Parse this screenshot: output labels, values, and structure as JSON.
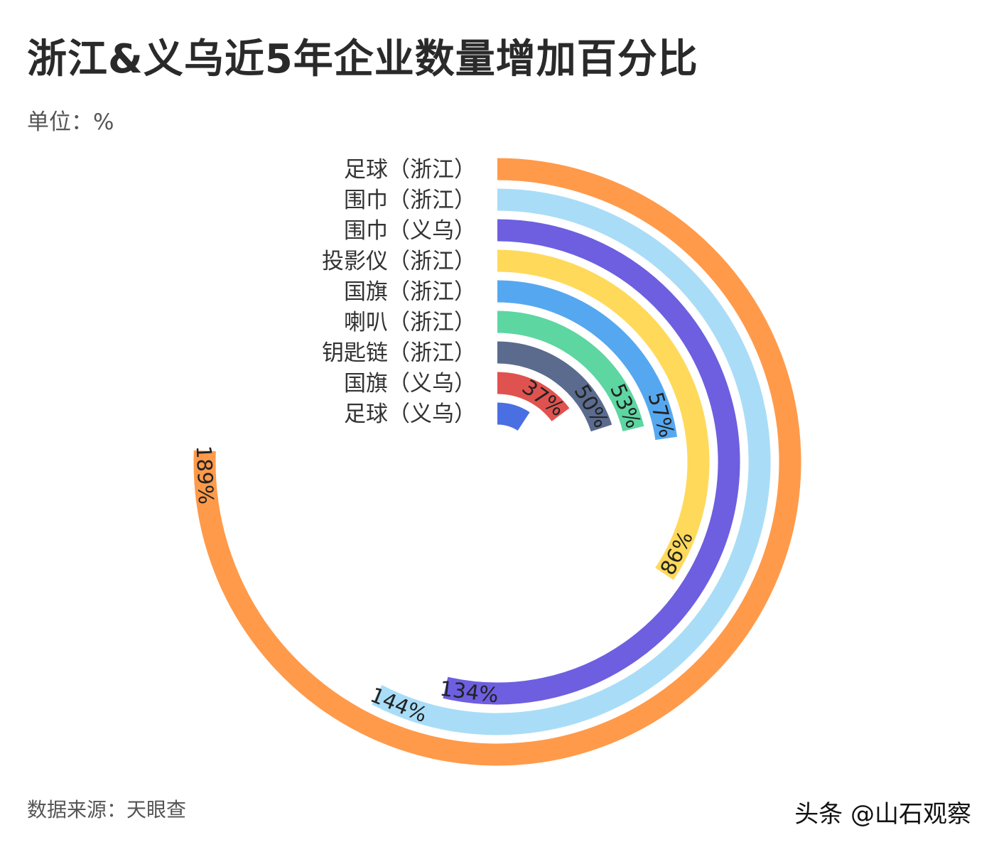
{
  "title": "浙江&义乌近5年企业数量增加百分比",
  "unit_label": "单位：%",
  "source": "数据来源：天眼查",
  "watermark": "头条 @山石观察",
  "chart_data": {
    "type": "radial-bar",
    "max_value": 250,
    "categories": [
      "足球（浙江）",
      "围巾（浙江）",
      "围巾（义乌）",
      "投影仪（浙江）",
      "国旗（浙江）",
      "喇叭（浙江）",
      "钥匙链（浙江）",
      "国旗（义乌）",
      "足球（义乌）"
    ],
    "values": [
      189,
      144,
      134,
      86,
      57,
      53,
      50,
      37,
      23
    ],
    "value_labels": [
      "189%",
      "144%",
      "134%",
      "86%",
      "57%",
      "53%",
      "50%",
      "37%",
      ""
    ],
    "colors": [
      "#FF9A4A",
      "#A9DDF7",
      "#6D5FE0",
      "#FFD95A",
      "#55A8F0",
      "#5DD6A2",
      "#5A6B8E",
      "#E0524F",
      "#4A6FE3"
    ]
  }
}
